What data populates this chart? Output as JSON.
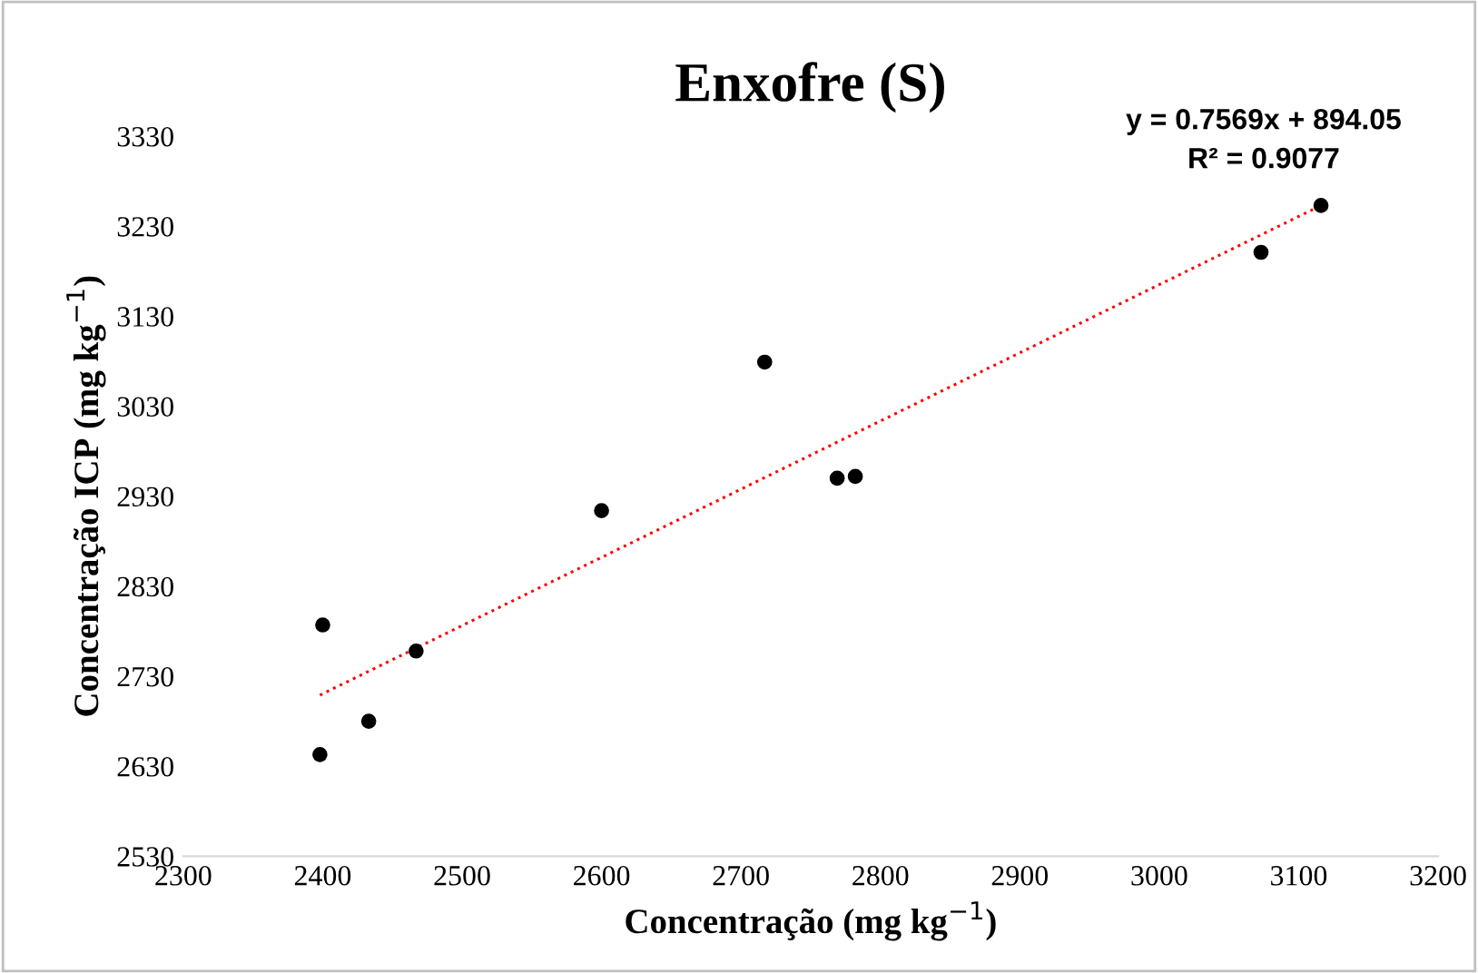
{
  "chart_data": {
    "type": "scatter",
    "title": "Enxofre (S)",
    "xlabel": "Concentração (mg kg$^{−1}$)",
    "ylabel": "Concentração ICP (mg kg$^{−1}$)",
    "annotations": [
      "y = 0.7569x + 894.05",
      "R² = 0.9077"
    ],
    "series": [
      {
        "color": "#000000",
        "marker": "circle",
        "x": [
          2398,
          2400,
          2433,
          2467,
          2600,
          2717,
          2769,
          2782,
          3073,
          3116
        ],
        "values": [
          2643,
          2787,
          2680,
          2758,
          2914,
          3079,
          2950,
          2952,
          3201,
          3253
        ]
      },
      {
        "type": "line",
        "color": "#ff0000",
        "line_style": "dotted",
        "x": [
          2398,
          3116
        ],
        "values": [
          2709,
          3253
        ]
      }
    ],
    "xlim": [
      2300,
      3200
    ],
    "xticks": [
      2300,
      2400,
      2500,
      2600,
      2700,
      2800,
      2900,
      3000,
      3100,
      3200
    ],
    "ylim": [
      2530,
      3330
    ],
    "yticks": [
      2530,
      2630,
      2730,
      2830,
      2930,
      3030,
      3130,
      3230,
      3330
    ],
    "grid": false
  }
}
